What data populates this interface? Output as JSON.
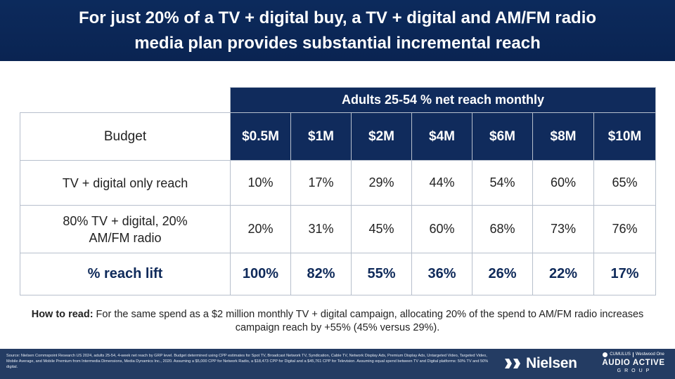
{
  "header": {
    "title_line1": "For just 20% of a TV + digital buy, a TV + digital and AM/FM radio",
    "title_line2": "media plan provides substantial incremental reach"
  },
  "table": {
    "group_header": "Adults 25-54 % net reach monthly",
    "budget_label": "Budget",
    "budgets": [
      "$0.5M",
      "$1M",
      "$2M",
      "$4M",
      "$6M",
      "$8M",
      "$10M"
    ],
    "rows": [
      {
        "label": "TV + digital only reach",
        "values": [
          "10%",
          "17%",
          "29%",
          "44%",
          "54%",
          "60%",
          "65%"
        ]
      },
      {
        "label_line1": "80% TV + digital, 20%",
        "label_line2": "AM/FM radio",
        "values": [
          "20%",
          "31%",
          "45%",
          "60%",
          "68%",
          "73%",
          "76%"
        ]
      },
      {
        "label": "% reach lift",
        "values": [
          "100%",
          "82%",
          "55%",
          "36%",
          "26%",
          "22%",
          "17%"
        ]
      }
    ]
  },
  "how_to_read": {
    "label": "How to read:",
    "text": " For the same spend as a $2 million monthly TV + digital campaign, allocating 20% of the spend to AM/FM radio increases campaign reach by +55% (45% versus 29%)."
  },
  "footer": {
    "source": "Source: Nielsen Commspoint Research US 2024, adults 25-54, 4-week net reach by GRP level. Budget determined using CPP estimates for Spot TV, Broadcast Network TV, Syndication, Cable TV, Network Display Ads, Premium Display Ads, Untargeted Video, Targeted Video, Mobile Average, and Mobile Premium from Intermedia Dimensions, Media Dynamics Inc., 2020. Assuming a $5,000 CPP for Network Radio, a $18,473 CPP for Digital and a $45,761 CPP for Television. Assuming equal spend between TV and Digital platforms: 50% TV and 50% digital.",
    "nielsen_logo": "Nielsen",
    "partner_top_left": "CUMULUS",
    "partner_top_right": "Westwood One",
    "partner_main": "AUDIO ACTIVE",
    "partner_sub": "GROUP"
  },
  "colors": {
    "navy": "#102b5c",
    "header_navy": "#0c2a5c",
    "footer_navy": "#243c63",
    "border": "#b7bfcc"
  }
}
